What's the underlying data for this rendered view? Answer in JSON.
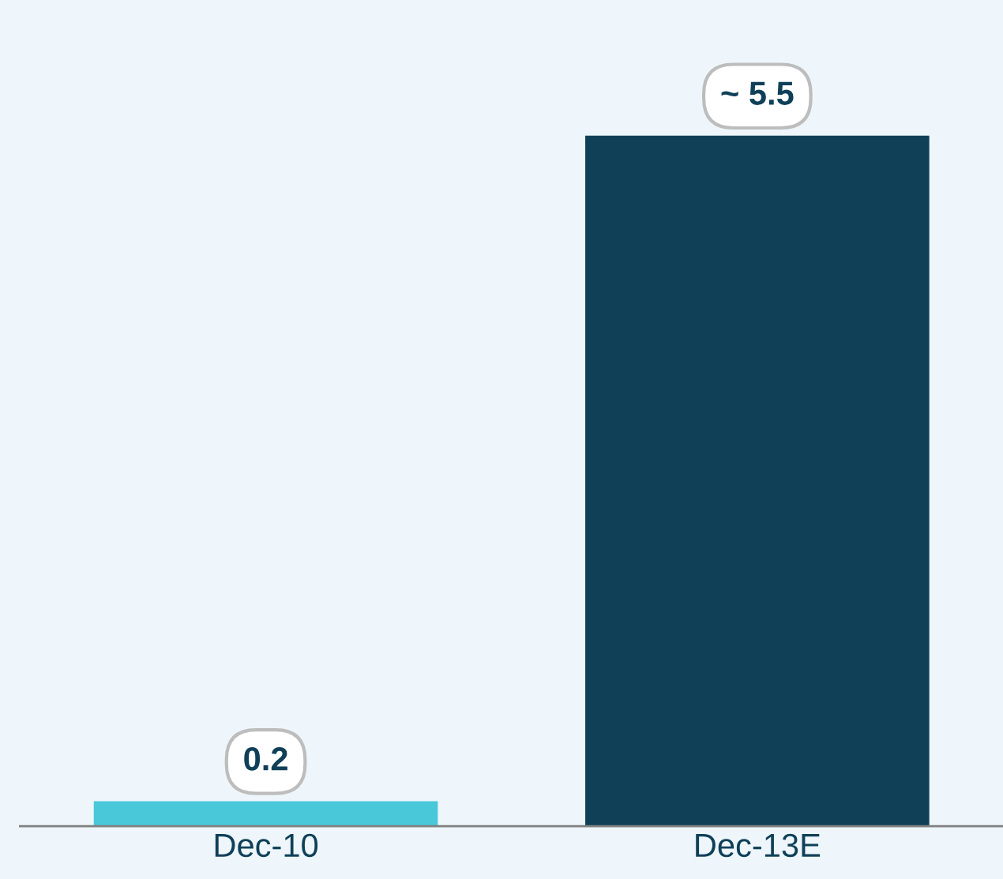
{
  "chart_data": {
    "type": "bar",
    "categories": [
      "Dec-10",
      "Dec-13E"
    ],
    "values": [
      0.2,
      5.5
    ],
    "value_labels": [
      "0.2",
      "~ 5.5"
    ],
    "colors": [
      "#48c8d8",
      "#0f4058"
    ]
  }
}
